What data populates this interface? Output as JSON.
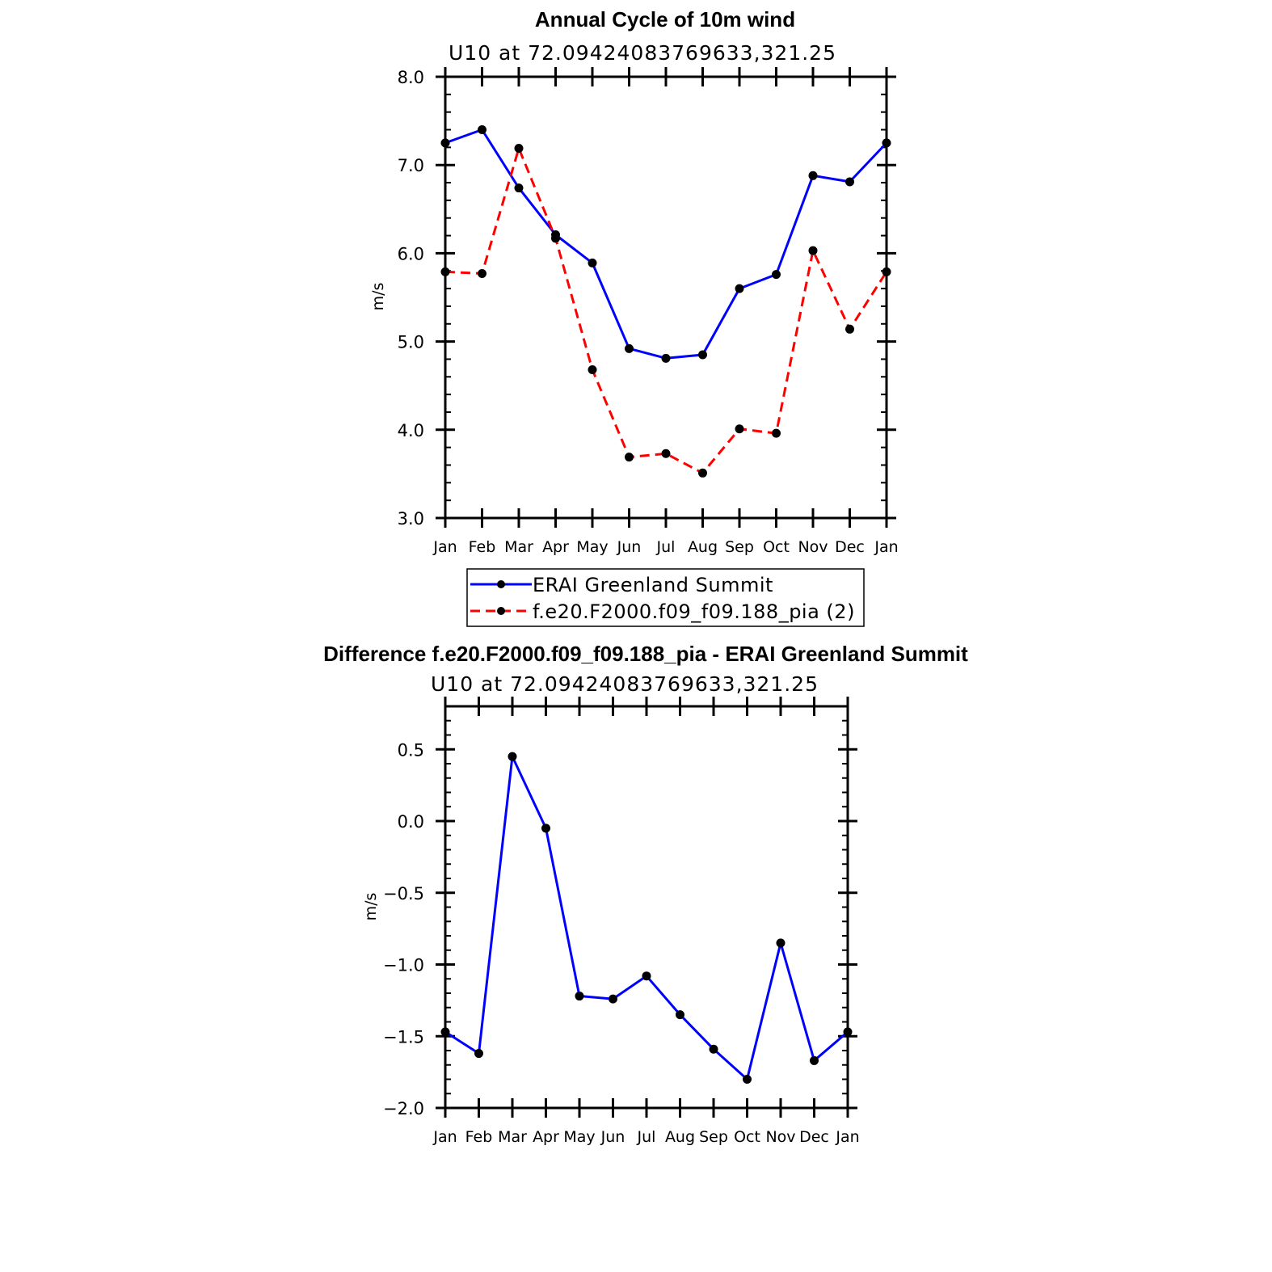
{
  "chart_data": [
    {
      "type": "line",
      "title": "Annual Cycle of 10m wind",
      "subtitle": "U10 at 72.09424083769633,321.25",
      "ylabel": "m/s",
      "xlabel": "",
      "ylim": [
        3.0,
        8.0
      ],
      "yticks": [
        3.0,
        4.0,
        5.0,
        6.0,
        7.0,
        8.0
      ],
      "ytick_labels": [
        "3.0",
        "4.0",
        "5.0",
        "6.0",
        "7.0",
        "8.0"
      ],
      "ytick_minor_step": 0.2,
      "categories": [
        "Jan",
        "Feb",
        "Mar",
        "Apr",
        "May",
        "Jun",
        "Jul",
        "Aug",
        "Sep",
        "Oct",
        "Nov",
        "Dec",
        "Jan"
      ],
      "series": [
        {
          "name": "ERAI Greenland Summit",
          "color": "#0000ff",
          "dash": "solid",
          "values": [
            7.25,
            7.4,
            6.74,
            6.21,
            5.89,
            4.92,
            4.81,
            4.85,
            5.6,
            5.76,
            6.88,
            6.81,
            7.25
          ]
        },
        {
          "name": "f.e20.F2000.f09_f09.188_pia (2)",
          "color": "#ff0000",
          "dash": "dashed",
          "values": [
            5.79,
            5.77,
            7.19,
            6.17,
            4.68,
            3.69,
            3.73,
            3.51,
            4.01,
            3.96,
            6.03,
            5.14,
            5.79
          ]
        }
      ],
      "legend": "below"
    },
    {
      "type": "line",
      "title": "Difference f.e20.F2000.f09_f09.188_pia - ERAI Greenland Summit",
      "subtitle": "U10 at 72.09424083769633,321.25",
      "ylabel": "m/s",
      "xlabel": "",
      "ylim": [
        -2.0,
        0.8
      ],
      "yticks": [
        -2.0,
        -1.5,
        -1.0,
        -0.5,
        0.0,
        0.5
      ],
      "ytick_labels": [
        "−2.0",
        "−1.5",
        "−1.0",
        "−0.5",
        "0.0",
        "0.5"
      ],
      "ytick_minor_step": 0.1,
      "categories": [
        "Jan",
        "Feb",
        "Mar",
        "Apr",
        "May",
        "Jun",
        "Jul",
        "Aug",
        "Sep",
        "Oct",
        "Nov",
        "Dec",
        "Jan"
      ],
      "series": [
        {
          "name": "Difference",
          "color": "#0000ff",
          "dash": "solid",
          "values": [
            -1.47,
            -1.62,
            0.45,
            -0.05,
            -1.22,
            -1.24,
            -1.08,
            -1.35,
            -1.59,
            -1.8,
            -0.85,
            -1.67,
            -1.47
          ]
        }
      ]
    }
  ]
}
